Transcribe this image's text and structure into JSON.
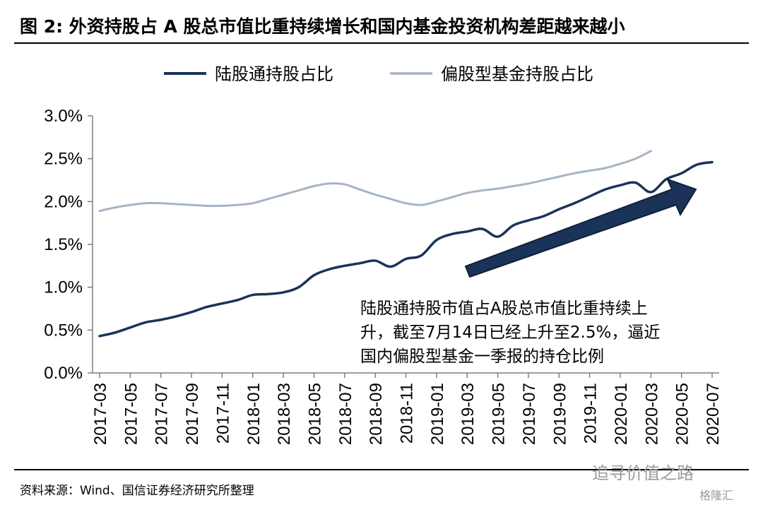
{
  "header": {
    "title": "图  2:  外资持股占 A 股总市值比重持续增长和国内基金投资机构差距越来越小"
  },
  "footer": {
    "source": "资料来源：Wind、国信证券经济研究所整理",
    "watermark": "追寻价值之路",
    "watermark_small": "格隆汇"
  },
  "colors": {
    "series_dark": "#1b3358",
    "series_light": "#a6b4c3",
    "arrow_fill": "#1b3358"
  },
  "chart_data": {
    "type": "line",
    "x": [
      "2017-03",
      "2017-04",
      "2017-05",
      "2017-06",
      "2017-07",
      "2017-08",
      "2017-09",
      "2017-10",
      "2017-11",
      "2017-12",
      "2018-01",
      "2018-02",
      "2018-03",
      "2018-04",
      "2018-05",
      "2018-06",
      "2018-07",
      "2018-08",
      "2018-09",
      "2018-10",
      "2018-11",
      "2018-12",
      "2019-01",
      "2019-02",
      "2019-03",
      "2019-04",
      "2019-05",
      "2019-06",
      "2019-07",
      "2019-08",
      "2019-09",
      "2019-10",
      "2019-11",
      "2019-12",
      "2020-01",
      "2020-02",
      "2020-03",
      "2020-04",
      "2020-05",
      "2020-06",
      "2020-07"
    ],
    "x_tick_labels": [
      "2017-03",
      "2017-05",
      "2017-07",
      "2017-09",
      "2017-11",
      "2018-01",
      "2018-03",
      "2018-05",
      "2018-07",
      "2018-09",
      "2018-11",
      "2019-01",
      "2019-03",
      "2019-05",
      "2019-07",
      "2019-09",
      "2019-11",
      "2020-01",
      "2020-03",
      "2020-05",
      "2020-07"
    ],
    "y_tick_labels": [
      "0.0%",
      "0.5%",
      "1.0%",
      "1.5%",
      "2.0%",
      "2.5%",
      "3.0%"
    ],
    "ylim": [
      0,
      3.0
    ],
    "y_unit": "%",
    "series": [
      {
        "name": "陆股通持股占比",
        "color": "#1b3358",
        "values": [
          0.43,
          0.47,
          0.53,
          0.59,
          0.62,
          0.66,
          0.71,
          0.77,
          0.81,
          0.85,
          0.91,
          0.92,
          0.94,
          1.0,
          1.14,
          1.21,
          1.25,
          1.28,
          1.31,
          1.24,
          1.33,
          1.37,
          1.55,
          1.62,
          1.65,
          1.68,
          1.59,
          1.72,
          1.78,
          1.83,
          1.91,
          1.98,
          2.06,
          2.14,
          2.19,
          2.22,
          2.11,
          2.26,
          2.33,
          2.43,
          2.46
        ]
      },
      {
        "name": "偏股型基金持股占比",
        "color": "#a6b4c3",
        "values": [
          1.89,
          1.93,
          1.96,
          1.98,
          1.98,
          1.97,
          1.96,
          1.95,
          1.95,
          1.96,
          1.98,
          2.03,
          2.08,
          2.13,
          2.18,
          2.21,
          2.2,
          2.14,
          2.08,
          2.03,
          1.98,
          1.96,
          2.0,
          2.05,
          2.1,
          2.13,
          2.15,
          2.18,
          2.21,
          2.25,
          2.29,
          2.33,
          2.36,
          2.39,
          2.44,
          2.5,
          2.59,
          null,
          null,
          null,
          null
        ]
      }
    ],
    "annotation": {
      "lines": [
        "陆股通持股市值占A股总市值比重持续上",
        "升，截至7月14日已经上升至2.5%，逼近",
        "国内偏股型基金一季报的持仓比例"
      ]
    },
    "legend_position": "top"
  }
}
